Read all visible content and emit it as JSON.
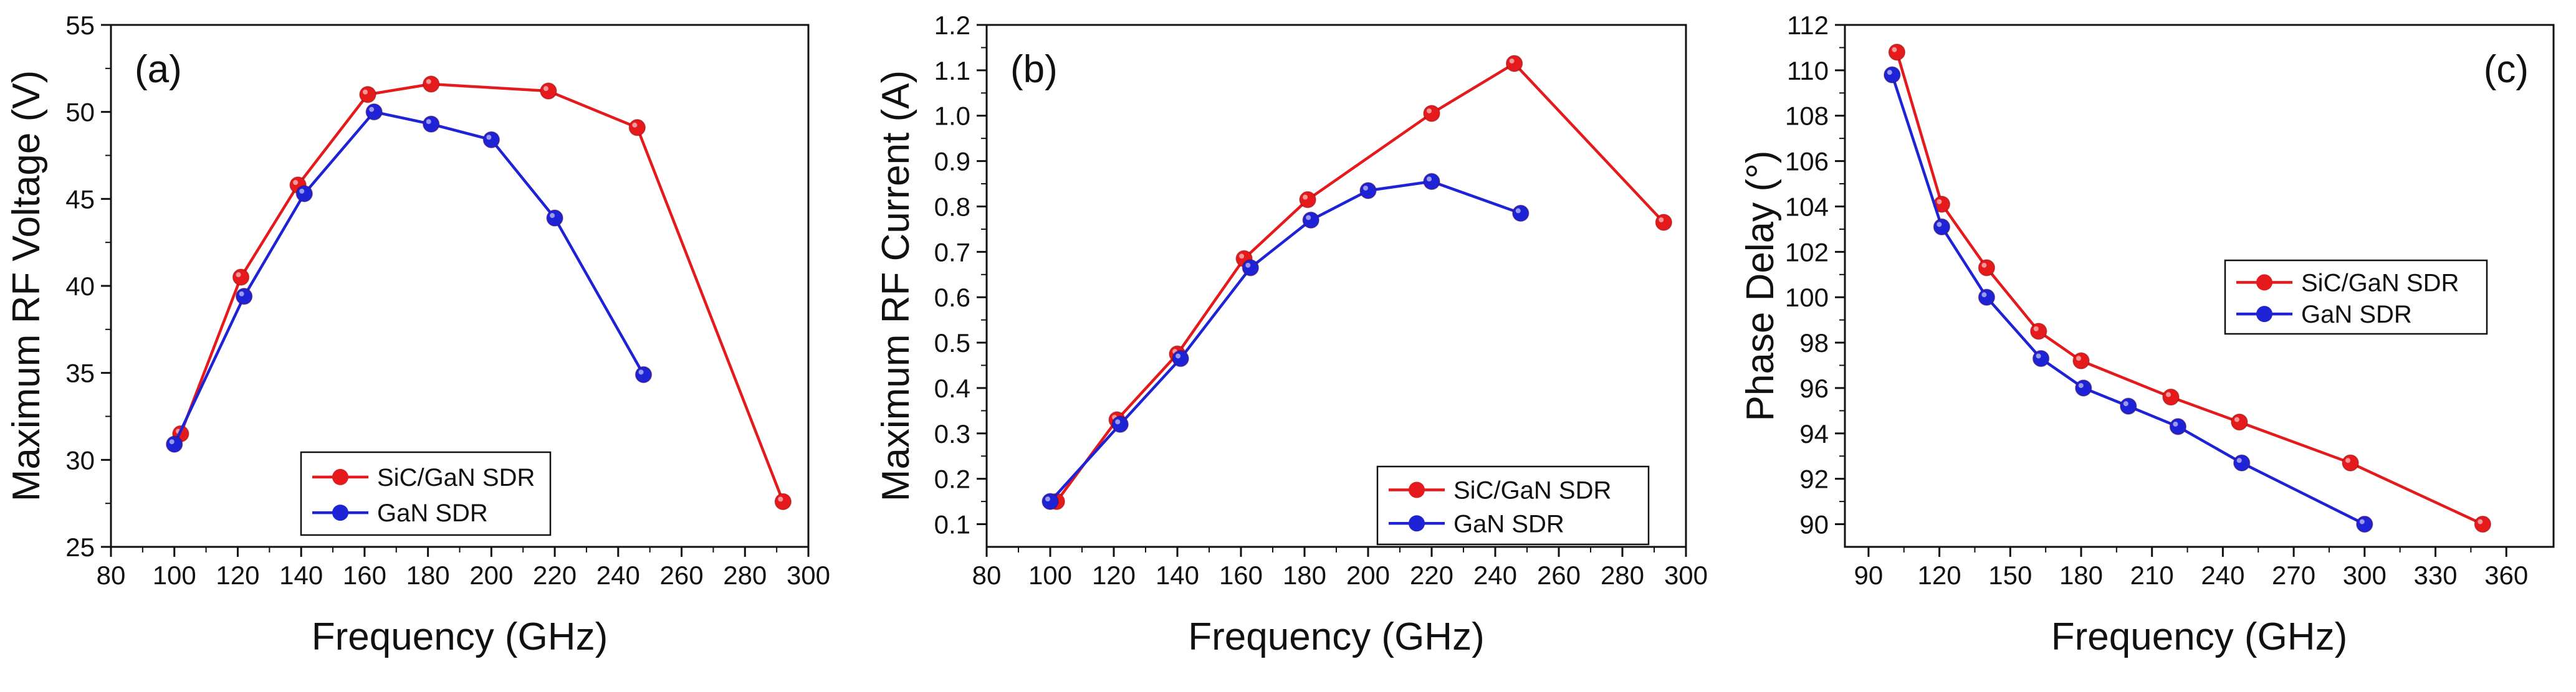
{
  "colors": {
    "sic_gan": "#e41a1c",
    "gan": "#1f23d6",
    "axis": "#111111"
  },
  "chart_data": [
    {
      "type": "line",
      "panel_label": "(a)",
      "xlabel": "Frequency (GHz)",
      "ylabel": "Maximum RF Voltage (V)",
      "xlim": [
        80,
        300
      ],
      "ylim": [
        25,
        55
      ],
      "xticks": [
        80,
        100,
        120,
        140,
        160,
        180,
        200,
        220,
        240,
        260,
        280,
        300
      ],
      "yticks": [
        25,
        30,
        35,
        40,
        45,
        50,
        55
      ],
      "legend_position": "center-bottom",
      "series": [
        {
          "name": "SiC/GaN SDR",
          "color": "#e41a1c",
          "x": [
            102,
            121,
            139,
            161,
            181,
            218,
            246,
            292
          ],
          "y": [
            31.5,
            40.5,
            45.8,
            51.0,
            51.6,
            51.2,
            49.1,
            27.6
          ]
        },
        {
          "name": "GaN SDR",
          "color": "#1f23d6",
          "x": [
            100,
            122,
            141,
            163,
            181,
            200,
            220,
            248
          ],
          "y": [
            30.9,
            39.4,
            45.3,
            50.0,
            49.3,
            48.4,
            43.9,
            34.9
          ]
        }
      ]
    },
    {
      "type": "line",
      "panel_label": "(b)",
      "xlabel": "Frequency (GHz)",
      "ylabel": "Maximum RF Current (A)",
      "xlim": [
        80,
        300
      ],
      "ylim": [
        0.05,
        1.2
      ],
      "xticks": [
        80,
        100,
        120,
        140,
        160,
        180,
        200,
        220,
        240,
        260,
        280,
        300
      ],
      "yticks": [
        0.1,
        0.2,
        0.3,
        0.4,
        0.5,
        0.6,
        0.7,
        0.8,
        0.9,
        1.0,
        1.1,
        1.2
      ],
      "ytick_labels": [
        "0.1",
        "0.2",
        "0.3",
        "0.4",
        "0.5",
        "0.6",
        "0.7",
        "0.8",
        "0.9",
        "1.0",
        "1.1",
        "1.2"
      ],
      "legend_position": "bottom-right",
      "series": [
        {
          "name": "SiC/GaN SDR",
          "color": "#e41a1c",
          "x": [
            102,
            121,
            140,
            161,
            181,
            220,
            246,
            293
          ],
          "y": [
            0.15,
            0.33,
            0.475,
            0.685,
            0.815,
            1.005,
            1.115,
            0.765
          ]
        },
        {
          "name": "GaN SDR",
          "color": "#1f23d6",
          "x": [
            100,
            122,
            141,
            163,
            182,
            200,
            220,
            248
          ],
          "y": [
            0.15,
            0.32,
            0.465,
            0.665,
            0.77,
            0.835,
            0.855,
            0.785
          ]
        }
      ]
    },
    {
      "type": "line",
      "panel_label": "(c)",
      "xlabel": "Frequency (GHz)",
      "ylabel": "Phase Delay (°)",
      "xlim": [
        80,
        380
      ],
      "ylim": [
        89,
        112
      ],
      "xticks": [
        90,
        120,
        150,
        180,
        210,
        240,
        270,
        300,
        330,
        360
      ],
      "yticks": [
        90,
        92,
        94,
        96,
        98,
        100,
        102,
        104,
        106,
        108,
        110,
        112
      ],
      "legend_position": "center-right",
      "series": [
        {
          "name": "SiC/GaN SDR",
          "color": "#e41a1c",
          "x": [
            102,
            121,
            140,
            162,
            180,
            218,
            247,
            294,
            350
          ],
          "y": [
            110.8,
            104.1,
            101.3,
            98.5,
            97.2,
            95.6,
            94.5,
            92.7,
            90.0
          ]
        },
        {
          "name": "GaN SDR",
          "color": "#1f23d6",
          "x": [
            100,
            121,
            140,
            163,
            181,
            200,
            221,
            248,
            300
          ],
          "y": [
            109.8,
            103.1,
            100.0,
            97.3,
            96.0,
            95.2,
            94.3,
            92.7,
            90.0
          ]
        }
      ]
    }
  ]
}
